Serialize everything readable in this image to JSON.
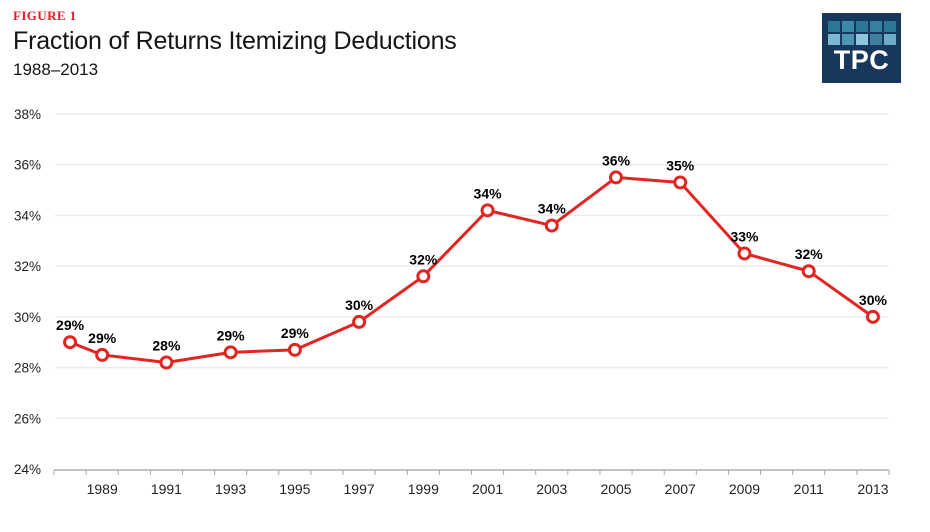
{
  "header": {
    "figure_label": "FIGURE 1",
    "title": "Fraction of Returns Itemizing Deductions",
    "subtitle": "1988–2013"
  },
  "logo": {
    "text": "TPC",
    "background": "#17375d",
    "tile_colors": [
      "#2c7795",
      "#3d89a8",
      "#2c7795",
      "#35819e",
      "#2c7795",
      "#7cb8d0",
      "#4f94b3",
      "#8fc5d9",
      "#3f7f9c",
      "#6fadc6"
    ]
  },
  "colors": {
    "line": "#e32521",
    "marker_fill": "#ffffff",
    "figure_label_red": "#ed1c24",
    "grid": "#ececec",
    "axis": "#c2c2c2",
    "tick": "#a8a8a8",
    "tick_text": "#231f20",
    "point_label_text": "#000000"
  },
  "chart_data": {
    "type": "line",
    "title": "Fraction of Returns Itemizing Deductions",
    "subtitle": "1988–2013",
    "x": [
      1988,
      1989,
      1991,
      1993,
      1995,
      1997,
      1999,
      2001,
      2003,
      2005,
      2007,
      2009,
      2011,
      2013
    ],
    "values": [
      29.0,
      28.5,
      28.2,
      28.6,
      28.7,
      29.8,
      31.6,
      34.2,
      33.6,
      35.5,
      35.3,
      32.5,
      31.8,
      30.0
    ],
    "point_labels": [
      "29%",
      "29%",
      "28%",
      "29%",
      "29%",
      "30%",
      "32%",
      "34%",
      "34%",
      "36%",
      "35%",
      "33%",
      "32%",
      "30%"
    ],
    "xlabel": "",
    "ylabel": "",
    "ylim": [
      24,
      38
    ],
    "yticks": [
      24,
      26,
      28,
      30,
      32,
      34,
      36,
      38
    ],
    "ytick_labels": [
      "24%",
      "26%",
      "28%",
      "30%",
      "32%",
      "34%",
      "36%",
      "38%"
    ],
    "xticks": [
      1989,
      1991,
      1993,
      1995,
      1997,
      1999,
      2001,
      2003,
      2005,
      2007,
      2009,
      2011,
      2013
    ],
    "category_range": [
      1988,
      2013
    ],
    "grid": "horizontal",
    "legend": "none",
    "marker": "open-circle",
    "line_color": "#e32521"
  }
}
